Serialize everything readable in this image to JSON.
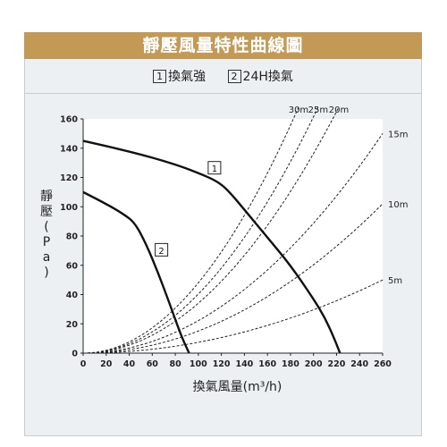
{
  "title": "靜壓風量特性曲線圖",
  "legend": {
    "items": [
      {
        "num": "1",
        "label": "換氣強"
      },
      {
        "num": "2",
        "label": "24H換氣"
      }
    ]
  },
  "chart_data": {
    "type": "line",
    "title": "靜壓風量特性曲線圖",
    "xlabel": "換氣風量(m³/h)",
    "ylabel": "靜壓(Pa)",
    "xlim": [
      0,
      260
    ],
    "ylim": [
      0,
      160
    ],
    "xticks": [
      0,
      20,
      40,
      60,
      80,
      100,
      120,
      140,
      160,
      180,
      200,
      220,
      240,
      260
    ],
    "yticks": [
      0,
      20,
      40,
      60,
      80,
      100,
      120,
      140,
      160
    ],
    "grid": false,
    "series": [
      {
        "name": "1",
        "style": "solid",
        "x": [
          0,
          40,
          80,
          100,
          115,
          125,
          140,
          160,
          180,
          200,
          210,
          218,
          223
        ],
        "y": [
          145,
          138,
          129,
          123,
          118,
          112,
          98,
          79,
          60,
          37,
          24,
          10,
          0
        ]
      },
      {
        "name": "2",
        "style": "solid",
        "x": [
          0,
          20,
          35,
          45,
          55,
          65,
          75,
          85,
          92
        ],
        "y": [
          110,
          102,
          95,
          89,
          74,
          55,
          34,
          12,
          0
        ]
      }
    ],
    "duct_curves": [
      {
        "label": "30m",
        "x_end": 187,
        "y_end": 168
      },
      {
        "label": "25m",
        "x_end": 204,
        "y_end": 168
      },
      {
        "label": "20m",
        "x_end": 222,
        "y_end": 168
      },
      {
        "label": "15m",
        "x_end": 260,
        "y_end": 150
      },
      {
        "label": "10m",
        "x_end": 260,
        "y_end": 102
      },
      {
        "label": "5m",
        "x_end": 260,
        "y_end": 50
      }
    ],
    "annotations": [
      "1",
      "2"
    ]
  }
}
